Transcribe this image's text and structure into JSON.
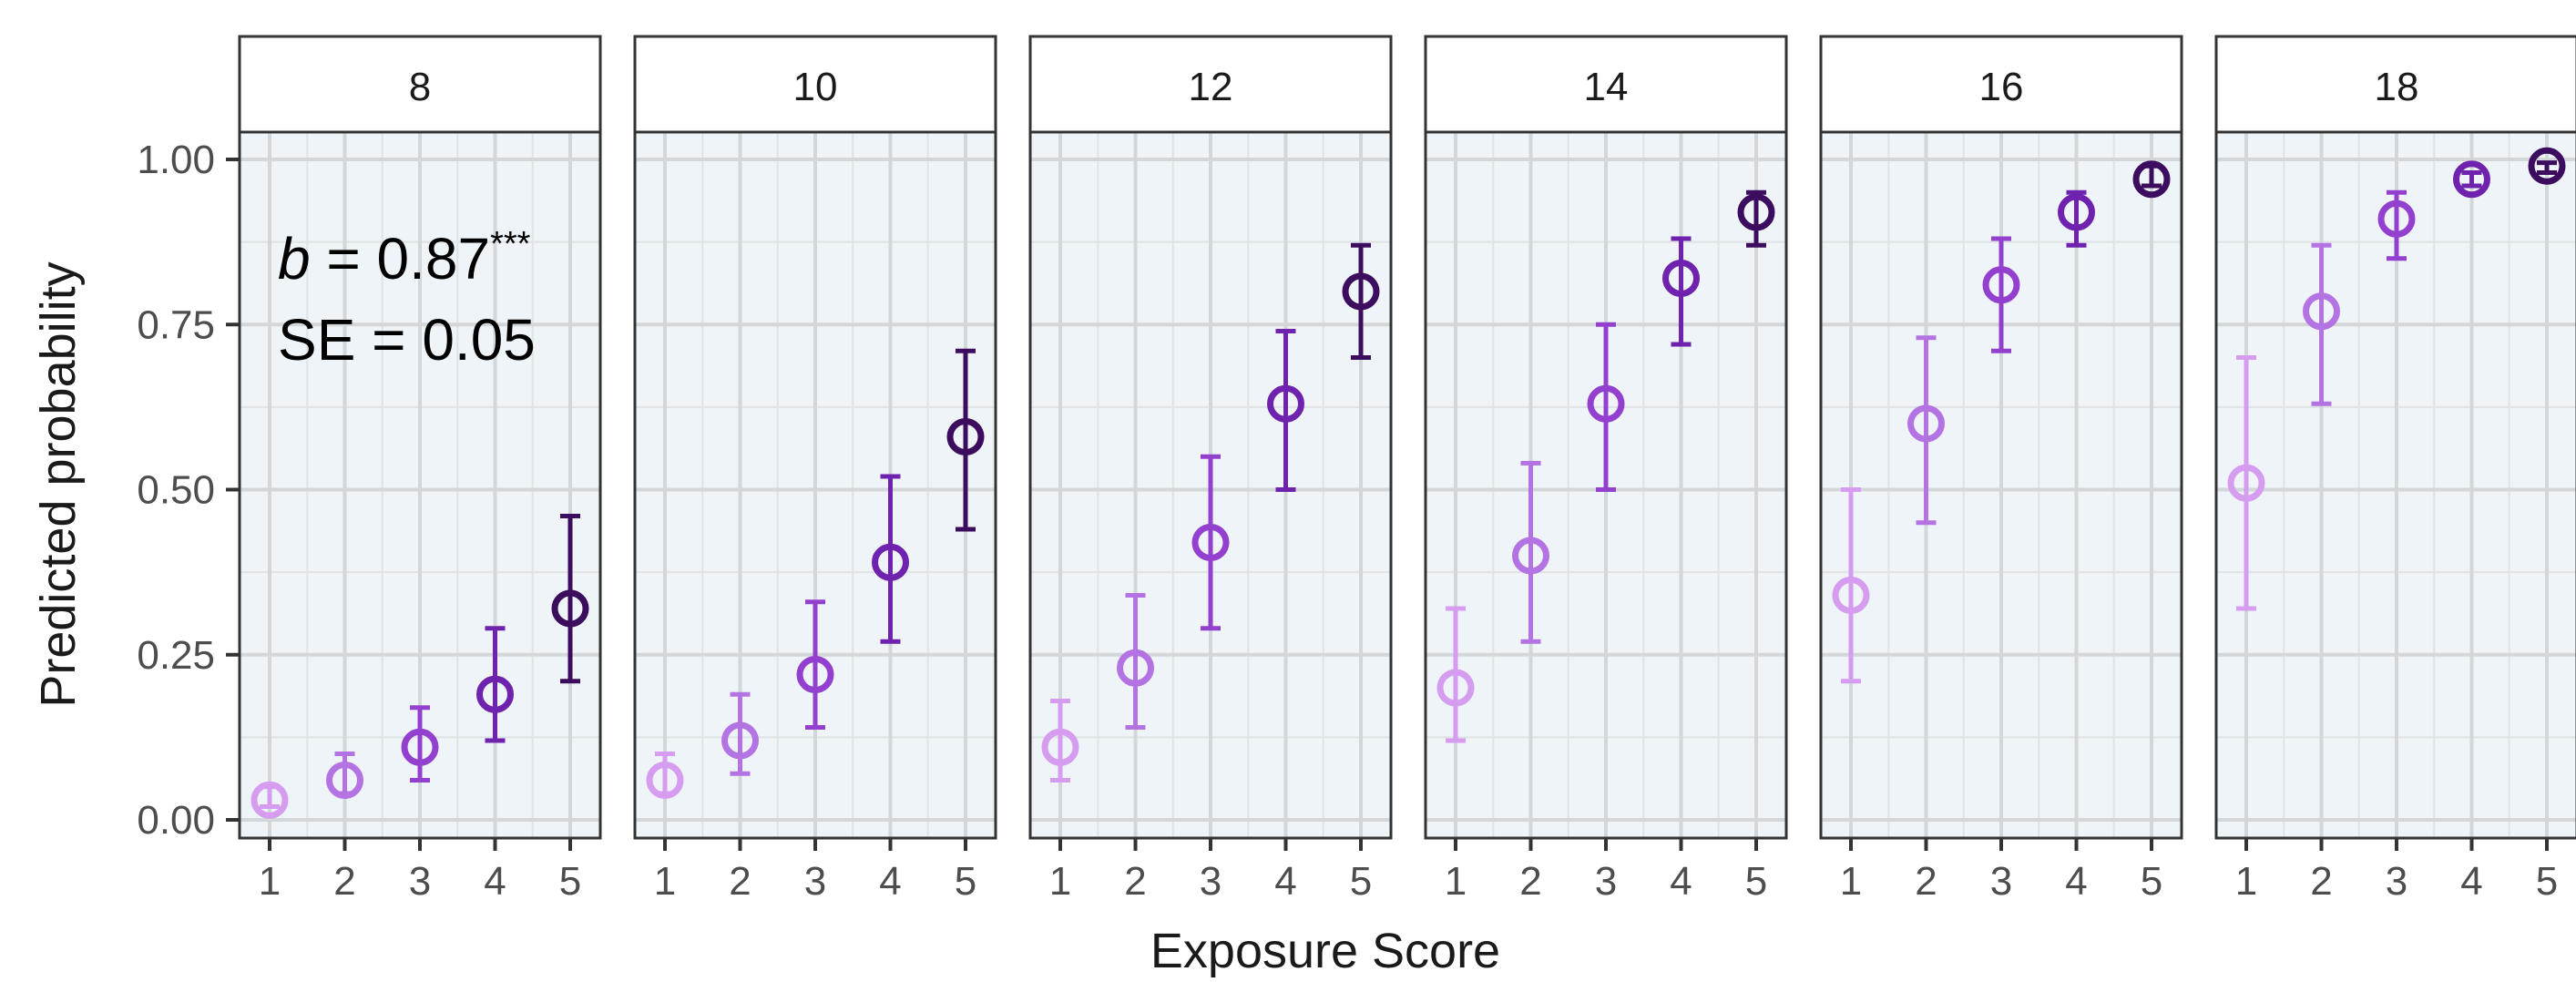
{
  "chart_data": {
    "type": "scatter",
    "title": "",
    "xlabel": "Exposure Score",
    "ylabel": "Predicted probability",
    "x_ticks": [
      "1",
      "2",
      "3",
      "4",
      "5"
    ],
    "y_ticks": [
      "0.00",
      "0.25",
      "0.50",
      "0.75",
      "1.00"
    ],
    "ylim": [
      0,
      1
    ],
    "xlim": [
      0.6,
      5.4
    ],
    "grid": true,
    "legend": "none",
    "annotation": {
      "b_symbol": "b",
      "b_text": " = 0.87",
      "b_sig": "***",
      "se_text": "SE = 0.05"
    },
    "point_colors": [
      "#d59cf0",
      "#b473e3",
      "#9340cf",
      "#6f22ad",
      "#3c0c5e"
    ],
    "panels": [
      {
        "label": "8",
        "y": [
          0.03,
          0.06,
          0.11,
          0.19,
          0.32
        ],
        "lower": [
          0.02,
          0.04,
          0.06,
          0.12,
          0.21
        ],
        "upper": [
          0.05,
          0.1,
          0.17,
          0.29,
          0.46
        ]
      },
      {
        "label": "10",
        "y": [
          0.06,
          0.12,
          0.22,
          0.39,
          0.58
        ],
        "lower": [
          0.04,
          0.07,
          0.14,
          0.27,
          0.44
        ],
        "upper": [
          0.1,
          0.19,
          0.33,
          0.52,
          0.71
        ]
      },
      {
        "label": "12",
        "y": [
          0.11,
          0.23,
          0.42,
          0.63,
          0.8
        ],
        "lower": [
          0.06,
          0.14,
          0.29,
          0.5,
          0.7
        ],
        "upper": [
          0.18,
          0.34,
          0.55,
          0.74,
          0.87
        ]
      },
      {
        "label": "14",
        "y": [
          0.2,
          0.4,
          0.63,
          0.82,
          0.92
        ],
        "lower": [
          0.12,
          0.27,
          0.5,
          0.72,
          0.87
        ],
        "upper": [
          0.32,
          0.54,
          0.75,
          0.88,
          0.95
        ]
      },
      {
        "label": "16",
        "y": [
          0.34,
          0.6,
          0.81,
          0.92,
          0.97
        ],
        "lower": [
          0.21,
          0.45,
          0.71,
          0.87,
          0.96
        ],
        "upper": [
          0.5,
          0.73,
          0.88,
          0.95,
          0.99
        ]
      },
      {
        "label": "18",
        "y": [
          0.51,
          0.77,
          0.91,
          0.97,
          0.99
        ],
        "lower": [
          0.32,
          0.63,
          0.85,
          0.96,
          0.98
        ],
        "upper": [
          0.7,
          0.87,
          0.95,
          0.98,
          0.995
        ]
      }
    ]
  }
}
